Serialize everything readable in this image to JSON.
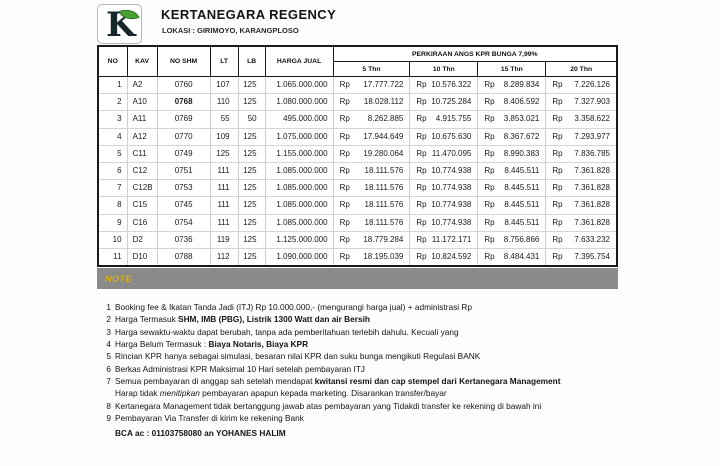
{
  "header": {
    "title": "KERTANEGARA REGENCY",
    "subtitle": "LOKASI : GIRIMOYO, KARANGPLOSO",
    "logo_letter": "K"
  },
  "table": {
    "columns": [
      "NO",
      "KAV",
      "NO SHM",
      "LT",
      "LB",
      "HARGA JUAL"
    ],
    "kpr_header": "PERKIRAAN ANGS KPR BUNGA 7,99%",
    "kpr_terms": [
      "5 Thn",
      "10 Thn",
      "15 Thn",
      "20 Thn"
    ],
    "currency_prefix": "Rp",
    "rows": [
      {
        "no": "1",
        "kav": "A2",
        "shm": "0760",
        "lt": "107",
        "lb": "125",
        "harga": "1.065.000.000",
        "angs": [
          "17.777.722",
          "10.576.322",
          "8.289.834",
          "7.226.126"
        ]
      },
      {
        "no": "2",
        "kav": "A10",
        "shm": "0768",
        "shm_bold": true,
        "lt": "110",
        "lb": "125",
        "harga": "1.080.000.000",
        "angs": [
          "18.028.112",
          "10.725.284",
          "8.406.592",
          "7.327.903"
        ]
      },
      {
        "no": "3",
        "kav": "A11",
        "shm": "0769",
        "lt": "55",
        "lb": "50",
        "harga": "495.000.000",
        "angs": [
          "8.262.885",
          "4.915.755",
          "3.853.021",
          "3.358.622"
        ]
      },
      {
        "no": "4",
        "kav": "A12",
        "shm": "0770",
        "lt": "109",
        "lb": "125",
        "harga": "1.075.000.000",
        "angs": [
          "17.944.649",
          "10.675.630",
          "8.367.672",
          "7.293.977"
        ]
      },
      {
        "no": "5",
        "kav": "C11",
        "shm": "0749",
        "lt": "125",
        "lb": "125",
        "harga": "1.155.000.000",
        "angs": [
          "19.280.064",
          "11.470.095",
          "8.990.383",
          "7.836.785"
        ]
      },
      {
        "no": "6",
        "kav": "C12",
        "shm": "0751",
        "lt": "111",
        "lb": "125",
        "harga": "1.085.000.000",
        "angs": [
          "18.111.576",
          "10.774.938",
          "8.445.511",
          "7.361.828"
        ]
      },
      {
        "no": "7",
        "kav": "C12B",
        "shm": "0753",
        "lt": "111",
        "lb": "125",
        "harga": "1.085.000.000",
        "angs": [
          "18.111.576",
          "10.774.938",
          "8.445.511",
          "7.361.828"
        ]
      },
      {
        "no": "8",
        "kav": "C15",
        "shm": "0745",
        "lt": "111",
        "lb": "125",
        "harga": "1.085.000.000",
        "angs": [
          "18.111.576",
          "10.774.938",
          "8.445.511",
          "7.361.828"
        ]
      },
      {
        "no": "9",
        "kav": "C16",
        "shm": "0754",
        "lt": "111",
        "lb": "125",
        "harga": "1.085.000.000",
        "angs": [
          "18.111.576",
          "10.774.938",
          "8.445.511",
          "7.361.828"
        ]
      },
      {
        "no": "10",
        "kav": "D2",
        "shm": "0736",
        "lt": "119",
        "lb": "125",
        "harga": "1.125.000.000",
        "angs": [
          "18.779.284",
          "11.172.171",
          "8.756.866",
          "7.633.232"
        ]
      },
      {
        "no": "11",
        "kav": "D10",
        "shm": "0788",
        "lt": "112",
        "lb": "125",
        "harga": "1.090.000.000",
        "angs": [
          "18.195.039",
          "10.824.592",
          "8.484.431",
          "7.395.754"
        ]
      }
    ]
  },
  "note": {
    "label": "NOTE",
    "bar_color": "#8a8a8a",
    "label_color": "#d4af1e",
    "items": [
      {
        "num": "1",
        "lines": [
          [
            {
              "t": "Booking fee & Ikatan Tanda Jadi (ITJ) Rp 10.000.000,- (mengurangi harga jual) + administrasi Rp"
            }
          ]
        ]
      },
      {
        "num": "2",
        "lines": [
          [
            {
              "t": "Harga Termasuk "
            },
            {
              "t": "SHM, IMB (PBG), Listrik 1300 Watt dan air Bersih",
              "b": true
            }
          ]
        ]
      },
      {
        "num": "3",
        "lines": [
          [
            {
              "t": "Harga sewaktu-waktu dapat berubah, tanpa ada pemberitahuan terlebih dahulu. Kecuali yang"
            }
          ]
        ]
      },
      {
        "num": "4",
        "lines": [
          [
            {
              "t": "Harga Belum Termasuk : "
            },
            {
              "t": "Biaya Notaris, Biaya KPR",
              "b": true
            }
          ]
        ]
      },
      {
        "num": "5",
        "lines": [
          [
            {
              "t": "Rincian KPR hanya sebagai simulasi, besaran nilai KPR dan suku bunga mengikuti Regulasi BANK"
            }
          ]
        ]
      },
      {
        "num": "6",
        "lines": [
          [
            {
              "t": "Berkas Administrasi KPR Maksimal 10 Hari setelah pembayaran ITJ"
            }
          ]
        ]
      },
      {
        "num": "7",
        "lines": [
          [
            {
              "t": "Semua pembayaran di anggap sah setelah mendapat "
            },
            {
              "t": "kwitansi resmi dan cap stempel dari Kertanegara Management",
              "b": true
            }
          ],
          [
            {
              "t": "Harap tidak "
            },
            {
              "t": "menitipkan",
              "i": true
            },
            {
              "t": "  pembayaran apapun kepada marketing. Disarankan transfer/bayar"
            }
          ]
        ]
      },
      {
        "num": "8",
        "lines": [
          [
            {
              "t": "Kertanegara Management tidak bertanggung jawab atas pembayaran yang Tidakdi transfer ke rekening di bawah ini"
            }
          ]
        ]
      },
      {
        "num": "9",
        "lines": [
          [
            {
              "t": "Pembayaran Via Transfer di kirim ke  rekening Bank"
            }
          ]
        ]
      }
    ],
    "bank_line": "BCA ac : 01103758080 an YOHANES HALIM"
  }
}
